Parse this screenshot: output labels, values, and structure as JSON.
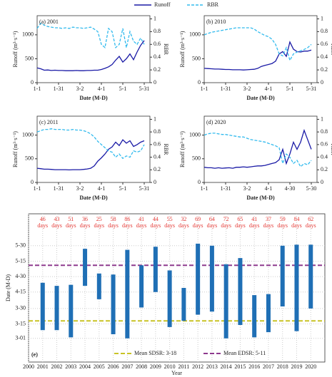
{
  "legend": [
    {
      "name": "Runoff",
      "color": "#1a1aa6",
      "dash": false
    },
    {
      "name": "RBR",
      "color": "#33bbee",
      "dash": true
    }
  ],
  "chart_data": [
    {
      "type": "line",
      "label": "(a) 2001",
      "xlabel": "Date (M-D)",
      "ylabel": "Runoff (m³·s⁻¹)",
      "y2label": "RBR",
      "x": [
        0,
        5,
        10,
        15,
        20,
        25,
        30,
        35,
        40,
        45,
        50,
        55,
        60,
        65,
        70,
        75,
        80,
        85,
        90,
        95,
        100,
        105,
        110,
        115,
        120,
        125,
        130,
        135,
        140,
        145,
        150
      ],
      "xlim": [
        0,
        158
      ],
      "xticks": [
        {
          "value": 0,
          "label": "1-1"
        },
        {
          "value": 30,
          "label": "1-31"
        },
        {
          "value": 60,
          "label": "3-2"
        },
        {
          "value": 90,
          "label": "4-1"
        },
        {
          "value": 120,
          "label": "5-1"
        },
        {
          "value": 150,
          "label": "5-31"
        }
      ],
      "ylim": [
        0,
        1400
      ],
      "yticks": [
        0,
        500,
        1000
      ],
      "y2lim": [
        0,
        1.05
      ],
      "y2ticks": [
        0,
        0.2,
        0.4,
        0.6,
        0.8,
        1
      ],
      "series": [
        {
          "values": [
            310,
            290,
            260,
            265,
            255,
            260,
            255,
            255,
            250,
            250,
            250,
            255,
            250,
            250,
            255,
            255,
            260,
            260,
            275,
            300,
            330,
            380,
            470,
            550,
            430,
            500,
            600,
            480,
            640,
            780,
            880
          ]
        },
        {
          "axis": "y2",
          "values": [
            0.85,
            0.93,
            0.9,
            0.88,
            0.87,
            0.86,
            0.86,
            0.85,
            0.86,
            0.85,
            0.87,
            0.86,
            0.86,
            0.85,
            0.86,
            0.87,
            0.84,
            0.8,
            0.6,
            0.55,
            0.85,
            0.8,
            0.55,
            0.6,
            0.85,
            0.55,
            0.8,
            0.65,
            0.6,
            0.7,
            0.6
          ]
        }
      ]
    },
    {
      "type": "line",
      "label": "(b) 2010",
      "xlabel": "Date (M-D)",
      "ylabel": "Runoff (m³·s⁻¹)",
      "y2label": "RBR",
      "x": [
        0,
        5,
        10,
        15,
        20,
        25,
        30,
        35,
        40,
        45,
        50,
        55,
        60,
        65,
        70,
        75,
        80,
        85,
        90,
        95,
        100,
        105,
        110,
        115,
        120,
        125,
        130,
        135,
        140,
        145,
        150
      ],
      "xlim": [
        0,
        158
      ],
      "xticks": [
        {
          "value": 0,
          "label": "1-1"
        },
        {
          "value": 30,
          "label": "1-31"
        },
        {
          "value": 60,
          "label": "3-2"
        },
        {
          "value": 90,
          "label": "4-1"
        },
        {
          "value": 120,
          "label": "5-1"
        },
        {
          "value": 150,
          "label": "5-31"
        }
      ],
      "ylim": [
        0,
        1400
      ],
      "yticks": [
        0,
        500,
        1000
      ],
      "y2lim": [
        0,
        1.05
      ],
      "y2ticks": [
        0,
        0.2,
        0.4,
        0.6,
        0.8,
        1
      ],
      "series": [
        {
          "values": [
            300,
            295,
            290,
            285,
            285,
            280,
            275,
            275,
            270,
            270,
            270,
            265,
            270,
            275,
            280,
            300,
            340,
            360,
            380,
            400,
            450,
            600,
            650,
            550,
            850,
            700,
            650,
            640,
            660,
            660,
            680
          ]
        },
        {
          "axis": "y2",
          "values": [
            0.75,
            0.77,
            0.79,
            0.8,
            0.81,
            0.82,
            0.83,
            0.84,
            0.85,
            0.86,
            0.86,
            0.86,
            0.86,
            0.86,
            0.84,
            0.8,
            0.77,
            0.74,
            0.72,
            0.68,
            0.6,
            0.45,
            0.42,
            0.55,
            0.35,
            0.45,
            0.48,
            0.5,
            0.52,
            0.55,
            0.6
          ]
        }
      ]
    },
    {
      "type": "line",
      "label": "(c) 2011",
      "xlabel": "Date (M-D)",
      "ylabel": "Runoff (m³·s⁻¹)",
      "y2label": "RBR",
      "x": [
        0,
        5,
        10,
        15,
        20,
        25,
        30,
        35,
        40,
        45,
        50,
        55,
        60,
        65,
        70,
        75,
        80,
        85,
        90,
        95,
        100,
        105,
        110,
        115,
        120,
        125,
        130,
        135,
        140,
        145,
        150
      ],
      "xlim": [
        0,
        158
      ],
      "xticks": [
        {
          "value": 0,
          "label": "1-1"
        },
        {
          "value": 30,
          "label": "1-31"
        },
        {
          "value": 60,
          "label": "3-2"
        },
        {
          "value": 90,
          "label": "4-1"
        },
        {
          "value": 120,
          "label": "5-1"
        },
        {
          "value": 150,
          "label": "5-31"
        }
      ],
      "ylim": [
        0,
        1400
      ],
      "yticks": [
        0,
        500,
        1000
      ],
      "y2lim": [
        0,
        1.05
      ],
      "y2ticks": [
        0,
        0.2,
        0.4,
        0.6,
        0.8,
        1
      ],
      "series": [
        {
          "values": [
            300,
            290,
            280,
            280,
            275,
            270,
            270,
            270,
            270,
            265,
            270,
            270,
            270,
            275,
            285,
            300,
            350,
            450,
            520,
            600,
            700,
            750,
            850,
            780,
            900,
            830,
            880,
            760,
            800,
            850,
            880
          ]
        },
        {
          "axis": "y2",
          "values": [
            0.8,
            0.82,
            0.84,
            0.84,
            0.85,
            0.84,
            0.84,
            0.84,
            0.83,
            0.83,
            0.84,
            0.83,
            0.83,
            0.82,
            0.8,
            0.77,
            0.72,
            0.65,
            0.6,
            0.55,
            0.5,
            0.48,
            0.4,
            0.45,
            0.38,
            0.42,
            0.4,
            0.5,
            0.48,
            0.5,
            0.6
          ]
        }
      ]
    },
    {
      "type": "line",
      "label": "(d) 2020",
      "xlabel": "Date (M-D)",
      "ylabel": "Runoff (m³·s⁻¹)",
      "y2label": "RBR",
      "x": [
        0,
        5,
        10,
        15,
        20,
        25,
        30,
        35,
        40,
        45,
        50,
        55,
        60,
        65,
        70,
        75,
        80,
        85,
        90,
        95,
        100,
        105,
        110,
        115,
        120,
        125,
        130,
        135,
        140,
        145,
        150
      ],
      "xlim": [
        0,
        158
      ],
      "xticks": [
        {
          "value": 0,
          "label": "1-1"
        },
        {
          "value": 30,
          "label": "1-31"
        },
        {
          "value": 60,
          "label": "3-2"
        },
        {
          "value": 90,
          "label": "4-1"
        },
        {
          "value": 120,
          "label": "4-30"
        },
        {
          "value": 150,
          "label": "5-30"
        }
      ],
      "ylim": [
        0,
        1400
      ],
      "yticks": [
        0,
        500,
        1000
      ],
      "y2lim": [
        0,
        1.05
      ],
      "y2ticks": [
        0,
        0.2,
        0.4,
        0.6,
        0.8,
        1
      ],
      "series": [
        {
          "values": [
            320,
            310,
            310,
            300,
            310,
            300,
            305,
            310,
            300,
            320,
            320,
            330,
            320,
            330,
            340,
            350,
            350,
            360,
            380,
            400,
            420,
            480,
            700,
            400,
            600,
            850,
            700,
            850,
            1100,
            900,
            700
          ]
        },
        {
          "axis": "y2",
          "values": [
            0.75,
            0.77,
            0.78,
            0.78,
            0.77,
            0.76,
            0.76,
            0.75,
            0.74,
            0.73,
            0.72,
            0.72,
            0.7,
            0.68,
            0.67,
            0.66,
            0.65,
            0.64,
            0.62,
            0.6,
            0.58,
            0.55,
            0.3,
            0.45,
            0.4,
            0.3,
            0.35,
            0.25,
            0.3,
            0.28,
            0.35
          ]
        }
      ]
    },
    {
      "type": "floating_bar",
      "label": "(e)",
      "xlabel": "Year",
      "ylabel": "Date (M-D)",
      "color": "#1f6fb5",
      "grid": true,
      "x": [
        2001,
        2002,
        2003,
        2004,
        2005,
        2006,
        2007,
        2008,
        2009,
        2010,
        2011,
        2012,
        2013,
        2014,
        2015,
        2016,
        2017,
        2018,
        2019,
        2020
      ],
      "starts": [
        68,
        68,
        61,
        111,
        98,
        64,
        60,
        90,
        105,
        71,
        77,
        83,
        86,
        60,
        73,
        61,
        66,
        91,
        67,
        89
      ],
      "ends": [
        114,
        111,
        112,
        147,
        123,
        122,
        146,
        131,
        149,
        126,
        109,
        152,
        150,
        132,
        138,
        102,
        103,
        150,
        151,
        151
      ],
      "durations": [
        46,
        43,
        51,
        36,
        25,
        58,
        86,
        41,
        44,
        55,
        32,
        69,
        64,
        72,
        65,
        41,
        37,
        59,
        84,
        62
      ],
      "duration_unit": "days",
      "duration_color": "#e53935",
      "xlim": [
        2000,
        2021
      ],
      "xticks": [
        2000,
        2001,
        2002,
        2003,
        2004,
        2005,
        2006,
        2007,
        2008,
        2009,
        2010,
        2011,
        2012,
        2013,
        2014,
        2015,
        2016,
        2017,
        2018,
        2019,
        2020
      ],
      "ylim": [
        37,
        181
      ],
      "yticks": [
        {
          "value": 60,
          "label": "3-01"
        },
        {
          "value": 74,
          "label": "3-15"
        },
        {
          "value": 89,
          "label": "3-30"
        },
        {
          "value": 105,
          "label": "4-15"
        },
        {
          "value": 120,
          "label": "4-30"
        },
        {
          "value": 135,
          "label": "5-15"
        },
        {
          "value": 150,
          "label": "5-30"
        }
      ],
      "reference_lines": [
        {
          "name": "Mean SDSR: 3-18",
          "value": 77,
          "color": "#c9c326"
        },
        {
          "name": "Mean EDSR: 5-11",
          "value": 131,
          "color": "#8e3a8e"
        }
      ]
    }
  ]
}
